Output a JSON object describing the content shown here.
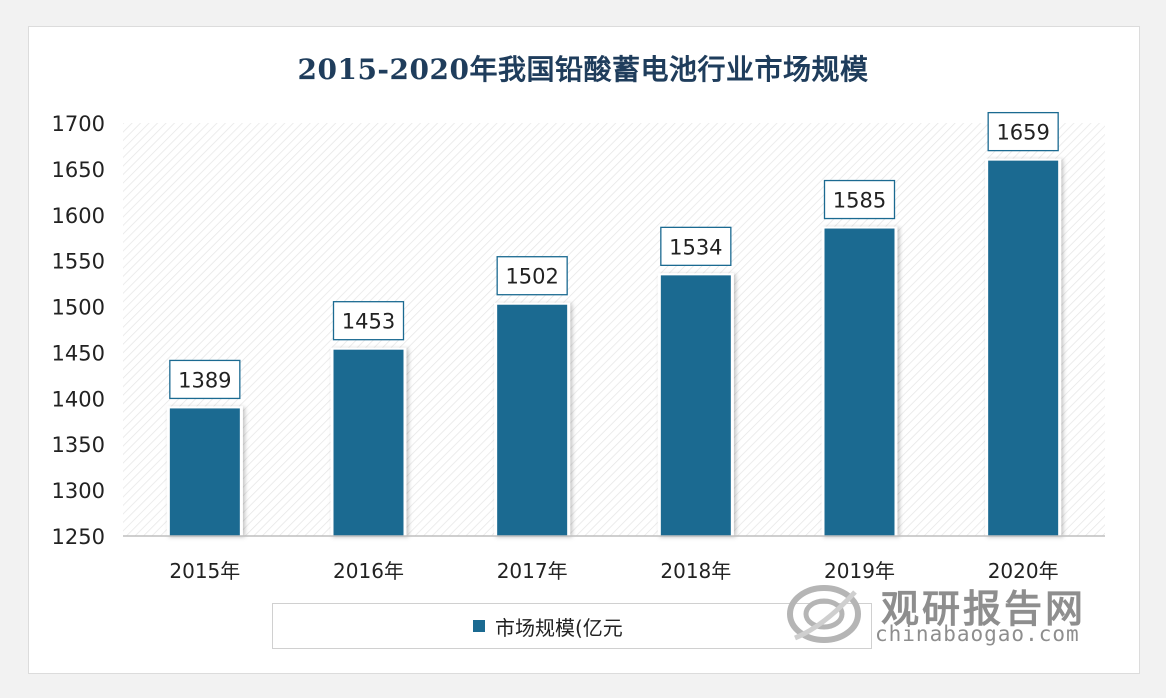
{
  "chart_data": {
    "type": "bar",
    "title": "2015-2020年我国铅酸蓄电池行业市场规模",
    "categories": [
      "2015年",
      "2016年",
      "2017年",
      "2018年",
      "2019年",
      "2020年"
    ],
    "series": [
      {
        "name": "市场规模(亿元",
        "values": [
          1389,
          1453,
          1502,
          1534,
          1585,
          1659
        ]
      }
    ],
    "ylim": [
      1250,
      1700
    ],
    "yticks": [
      1250,
      1300,
      1350,
      1400,
      1450,
      1500,
      1550,
      1600,
      1650,
      1700
    ],
    "grid": false,
    "legend_position": "bottom",
    "bar_color": "#1b6a91",
    "plot_background": "diagonal hatch"
  },
  "watermark": {
    "brand": "观研报告网",
    "url": "chinabaogao.com"
  }
}
